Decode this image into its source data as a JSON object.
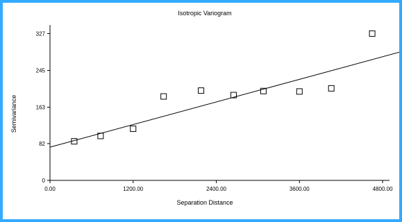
{
  "chart_data": {
    "type": "scatter",
    "title": "Isotropic Variogram",
    "xlabel": "Separation Distance",
    "ylabel": "Semivariance",
    "xlim": [
      0,
      5100
    ],
    "ylim": [
      0,
      340
    ],
    "x_ticks": [
      0,
      1200,
      2400,
      3600,
      4800
    ],
    "x_tick_labels": [
      "0.00",
      "1200.00",
      "2400.00",
      "3600.00",
      "4800.00"
    ],
    "y_ticks": [
      0,
      82,
      163,
      245,
      327
    ],
    "y_tick_labels": [
      "0",
      "82",
      "163",
      "245",
      "327"
    ],
    "points": [
      {
        "x": 350,
        "y": 87
      },
      {
        "x": 730,
        "y": 99
      },
      {
        "x": 1200,
        "y": 115
      },
      {
        "x": 1640,
        "y": 187
      },
      {
        "x": 2180,
        "y": 200
      },
      {
        "x": 2650,
        "y": 190
      },
      {
        "x": 3080,
        "y": 199
      },
      {
        "x": 3600,
        "y": 198
      },
      {
        "x": 4060,
        "y": 205
      },
      {
        "x": 4650,
        "y": 327
      }
    ],
    "fit_line": {
      "x": [
        0,
        5100
      ],
      "y": [
        74,
        288
      ]
    },
    "grid": false,
    "legend": "none",
    "colors": {
      "frame": "#33aaff",
      "axis": "#000000",
      "marker": "#000000",
      "line": "#000000"
    }
  }
}
